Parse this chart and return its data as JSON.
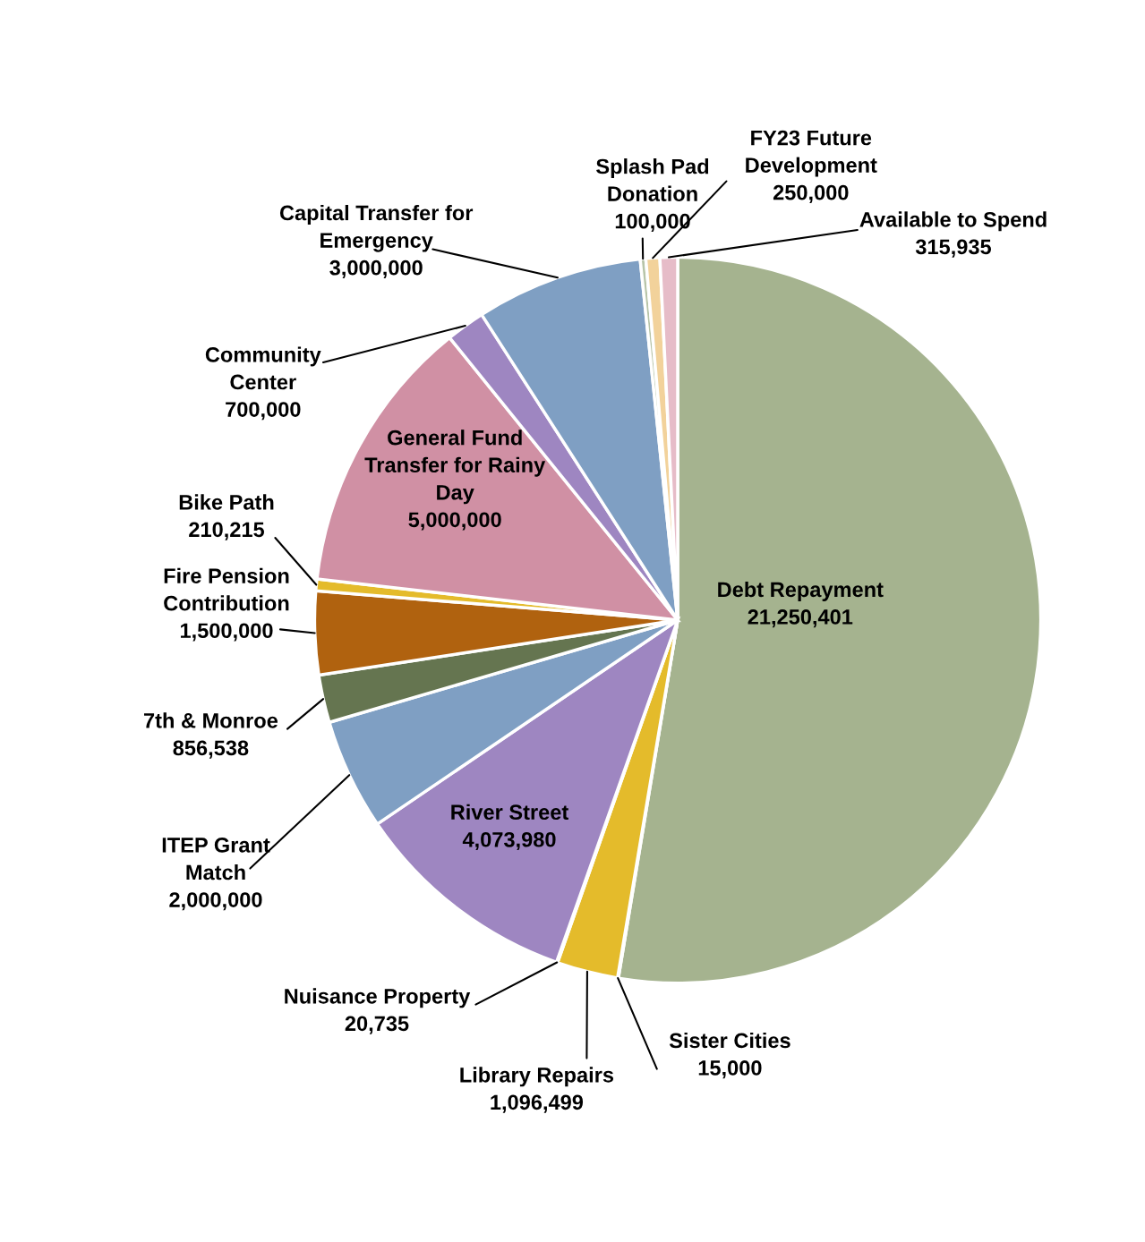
{
  "chart_data": {
    "type": "pie",
    "categories": [
      "Debt Repayment",
      "Sister Cities",
      "Library Repairs",
      "Nuisance Property",
      "River Street",
      "ITEP Grant\nMatch",
      "7th & Monroe",
      "Fire Pension\nContribution",
      "Bike Path",
      "General Fund\nTransfer for Rainy\nDay",
      "Community\nCenter",
      "Capital Transfer for\nEmergency",
      "Splash Pad\nDonation",
      "FY23 Future\nDevelopment",
      "Available to Spend"
    ],
    "values": [
      21250401,
      15000,
      1096499,
      20735,
      4073980,
      2000000,
      856538,
      1500000,
      210215,
      5000000,
      700000,
      3000000,
      100000,
      250000,
      315935
    ],
    "value_labels": [
      "21,250,401",
      "15,000",
      "1,096,499",
      "20,735",
      "4,073,980",
      "2,000,000",
      "856,538",
      "1,500,000",
      "210,215",
      "5,000,000",
      "700,000",
      "3,000,000",
      "100,000",
      "250,000",
      "315,935"
    ],
    "colors": [
      "#a5b38f",
      "#c9a6b0",
      "#e4bb2b",
      "#b9a9d4",
      "#9e86c1",
      "#7f9fc3",
      "#657550",
      "#b0620f",
      "#e4bb2b",
      "#d090a4",
      "#9e86c1",
      "#7f9fc3",
      "#b7c4a8",
      "#f2d29b",
      "#e6bcc8"
    ]
  }
}
